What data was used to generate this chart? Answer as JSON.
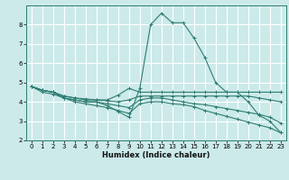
{
  "xlabel": "Humidex (Indice chaleur)",
  "ylabel": "",
  "bg_color": "#cceaea",
  "line_color": "#2e7d72",
  "grid_color": "#ffffff",
  "xlim": [
    -0.5,
    23.5
  ],
  "ylim": [
    2,
    9
  ],
  "yticks": [
    2,
    3,
    4,
    5,
    6,
    7,
    8
  ],
  "xticks": [
    0,
    1,
    2,
    3,
    4,
    5,
    6,
    7,
    8,
    9,
    10,
    11,
    12,
    13,
    14,
    15,
    16,
    17,
    18,
    19,
    20,
    21,
    22,
    23
  ],
  "lines": [
    {
      "x": [
        0,
        1,
        2,
        3,
        4,
        5,
        6,
        7,
        8,
        9,
        10,
        11,
        12,
        13,
        14,
        15,
        16,
        17,
        18,
        19,
        20,
        21,
        22,
        23
      ],
      "y": [
        4.8,
        4.6,
        4.5,
        4.2,
        4.1,
        4.0,
        4.0,
        3.8,
        3.5,
        3.2,
        4.7,
        8.0,
        8.6,
        8.1,
        8.1,
        7.3,
        6.3,
        5.0,
        4.5,
        4.5,
        4.0,
        3.3,
        3.0,
        2.4
      ]
    },
    {
      "x": [
        0,
        1,
        2,
        3,
        4,
        5,
        6,
        7,
        8,
        9,
        10,
        11,
        12,
        13,
        14,
        15,
        16,
        17,
        18,
        19,
        20,
        21,
        22,
        23
      ],
      "y": [
        4.8,
        4.6,
        4.5,
        4.3,
        4.2,
        4.1,
        4.1,
        4.1,
        4.35,
        4.7,
        4.5,
        4.5,
        4.5,
        4.5,
        4.5,
        4.5,
        4.5,
        4.5,
        4.5,
        4.5,
        4.5,
        4.5,
        4.5,
        4.5
      ]
    },
    {
      "x": [
        0,
        1,
        2,
        3,
        4,
        5,
        6,
        7,
        8,
        9,
        10,
        11,
        12,
        13,
        14,
        15,
        16,
        17,
        18,
        19,
        20,
        21,
        22,
        23
      ],
      "y": [
        4.8,
        4.6,
        4.5,
        4.3,
        4.2,
        4.15,
        4.1,
        4.05,
        4.0,
        4.1,
        4.3,
        4.3,
        4.3,
        4.3,
        4.3,
        4.3,
        4.3,
        4.3,
        4.3,
        4.3,
        4.3,
        4.2,
        4.1,
        4.0
      ]
    },
    {
      "x": [
        0,
        1,
        2,
        3,
        4,
        5,
        6,
        7,
        8,
        9,
        10,
        11,
        12,
        13,
        14,
        15,
        16,
        17,
        18,
        19,
        20,
        21,
        22,
        23
      ],
      "y": [
        4.8,
        4.6,
        4.5,
        4.2,
        4.1,
        4.0,
        4.0,
        3.9,
        3.8,
        3.7,
        4.1,
        4.2,
        4.2,
        4.1,
        4.0,
        3.9,
        3.85,
        3.75,
        3.65,
        3.55,
        3.45,
        3.35,
        3.2,
        2.9
      ]
    },
    {
      "x": [
        0,
        1,
        2,
        3,
        4,
        5,
        6,
        7,
        8,
        9,
        10,
        11,
        12,
        13,
        14,
        15,
        16,
        17,
        18,
        19,
        20,
        21,
        22,
        23
      ],
      "y": [
        4.8,
        4.5,
        4.4,
        4.2,
        4.0,
        3.9,
        3.8,
        3.7,
        3.55,
        3.4,
        3.9,
        4.0,
        4.0,
        3.9,
        3.85,
        3.75,
        3.55,
        3.4,
        3.25,
        3.1,
        2.95,
        2.8,
        2.65,
        2.4
      ]
    }
  ]
}
